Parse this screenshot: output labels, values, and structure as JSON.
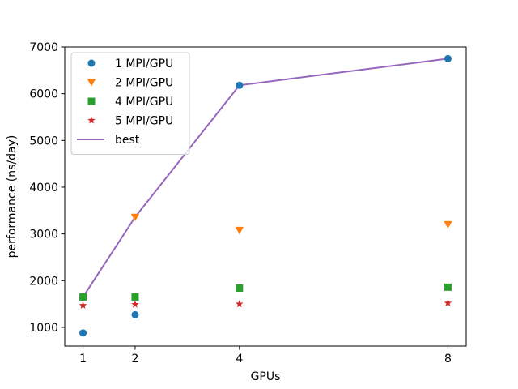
{
  "chart_data": {
    "type": "scatter",
    "title": "",
    "xlabel": "GPUs",
    "ylabel": "performance (ns/day)",
    "xlim": [
      0.65,
      8.35
    ],
    "ylim": [
      600,
      7000
    ],
    "xticks": [
      1,
      2,
      4,
      8
    ],
    "yticks": [
      1000,
      2000,
      3000,
      4000,
      5000,
      6000,
      7000
    ],
    "grid": false,
    "legend_position": "upper-left",
    "series": [
      {
        "name": "1 MPI/GPU",
        "marker": "circle",
        "color": "#1f77b4",
        "x": [
          1,
          2,
          4,
          8
        ],
        "y": [
          880,
          1270,
          6180,
          6750
        ]
      },
      {
        "name": "2 MPI/GPU",
        "marker": "triangle-down",
        "color": "#ff7f0e",
        "x": [
          2,
          4,
          8
        ],
        "y": [
          3360,
          3080,
          3200
        ]
      },
      {
        "name": "4 MPI/GPU",
        "marker": "square",
        "color": "#2ca02c",
        "x": [
          1,
          2,
          4,
          8
        ],
        "y": [
          1650,
          1650,
          1840,
          1860
        ]
      },
      {
        "name": "5 MPI/GPU",
        "marker": "star",
        "color": "#d62728",
        "x": [
          1,
          2,
          4,
          8
        ],
        "y": [
          1470,
          1490,
          1500,
          1520
        ]
      },
      {
        "name": "best",
        "marker": "line",
        "color": "#9467bd",
        "x": [
          1,
          2,
          4,
          8
        ],
        "y": [
          1650,
          3360,
          6180,
          6750
        ]
      }
    ]
  }
}
